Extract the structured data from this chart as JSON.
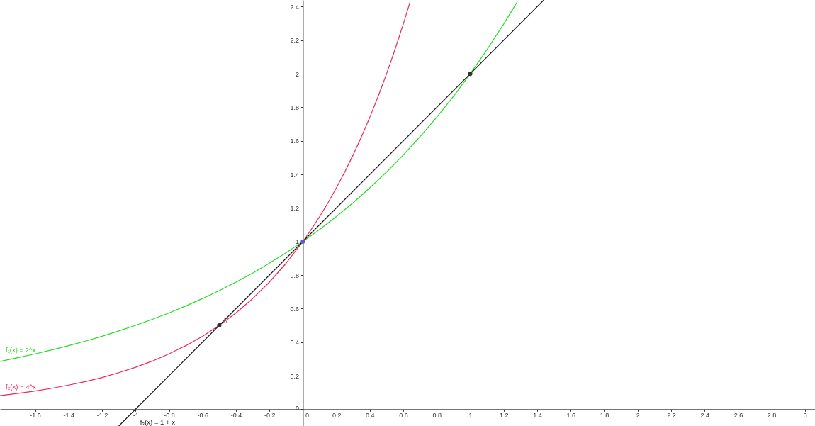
{
  "chart_data": {
    "type": "line",
    "xlim": [
      -1.81,
      3.06
    ],
    "ylim": [
      -0.1,
      2.44
    ],
    "xticks": [
      -1.6,
      -1.4,
      -1.2,
      -1,
      -0.8,
      -0.6,
      -0.4,
      -0.2,
      0,
      0.2,
      0.4,
      0.6,
      0.8,
      1,
      1.2,
      1.4,
      1.6,
      1.8,
      2,
      2.2,
      2.4,
      2.6,
      2.8,
      3
    ],
    "yticks": [
      0,
      0.2,
      0.4,
      0.6,
      0.8,
      1,
      1.2,
      1.4,
      1.6,
      1.8,
      2,
      2.2,
      2.4
    ],
    "series": [
      {
        "name": "f₁(x) = 2^x",
        "color": "#22dd22",
        "x": [
          -1.81,
          -1.7,
          -1.6,
          -1.5,
          -1.4,
          -1.3,
          -1.2,
          -1.1,
          -1,
          -0.9,
          -0.8,
          -0.7,
          -0.6,
          -0.5,
          -0.4,
          -0.3,
          -0.2,
          -0.1,
          0,
          0.1,
          0.2,
          0.3,
          0.4,
          0.5,
          0.6,
          0.7,
          0.8,
          0.9,
          1,
          1.1,
          1.2,
          1.28
        ],
        "values": [
          0.285,
          0.308,
          0.33,
          0.354,
          0.379,
          0.406,
          0.435,
          0.467,
          0.5,
          0.536,
          0.574,
          0.616,
          0.66,
          0.707,
          0.758,
          0.812,
          0.871,
          0.933,
          1,
          1.072,
          1.149,
          1.231,
          1.32,
          1.414,
          1.516,
          1.625,
          1.741,
          1.866,
          2,
          2.144,
          2.297,
          2.428
        ]
      },
      {
        "name": "f₂(x) = 4^x",
        "color": "#f0245a",
        "x": [
          -1.81,
          -1.7,
          -1.6,
          -1.5,
          -1.4,
          -1.3,
          -1.2,
          -1.1,
          -1,
          -0.9,
          -0.8,
          -0.7,
          -0.6,
          -0.5,
          -0.4,
          -0.3,
          -0.2,
          -0.1,
          0,
          0.05,
          0.1,
          0.15,
          0.2,
          0.25,
          0.3,
          0.35,
          0.4,
          0.45,
          0.5,
          0.55,
          0.6,
          0.64
        ],
        "values": [
          0.081,
          0.095,
          0.109,
          0.125,
          0.144,
          0.165,
          0.189,
          0.218,
          0.25,
          0.287,
          0.33,
          0.379,
          0.435,
          0.5,
          0.574,
          0.66,
          0.758,
          0.871,
          1,
          1.072,
          1.149,
          1.231,
          1.32,
          1.414,
          1.516,
          1.625,
          1.741,
          1.866,
          2,
          2.144,
          2.297,
          2.428
        ]
      },
      {
        "name": "f₃(x) = 1 + x",
        "color": "#111111",
        "x": [
          -1.1,
          1.44
        ],
        "values": [
          -0.1,
          2.44
        ]
      },
      {
        "type": "scatter",
        "color": "#333333",
        "marker": "circle",
        "x": [
          -0.5,
          1
        ],
        "values": [
          0.5,
          2
        ]
      },
      {
        "type": "scatter",
        "color": "#5c5cd6",
        "marker": "circle",
        "x": [
          0
        ],
        "values": [
          1
        ]
      }
    ],
    "annotations": [
      {
        "text": "A",
        "x": -0.5,
        "y": 0.5
      }
    ]
  }
}
